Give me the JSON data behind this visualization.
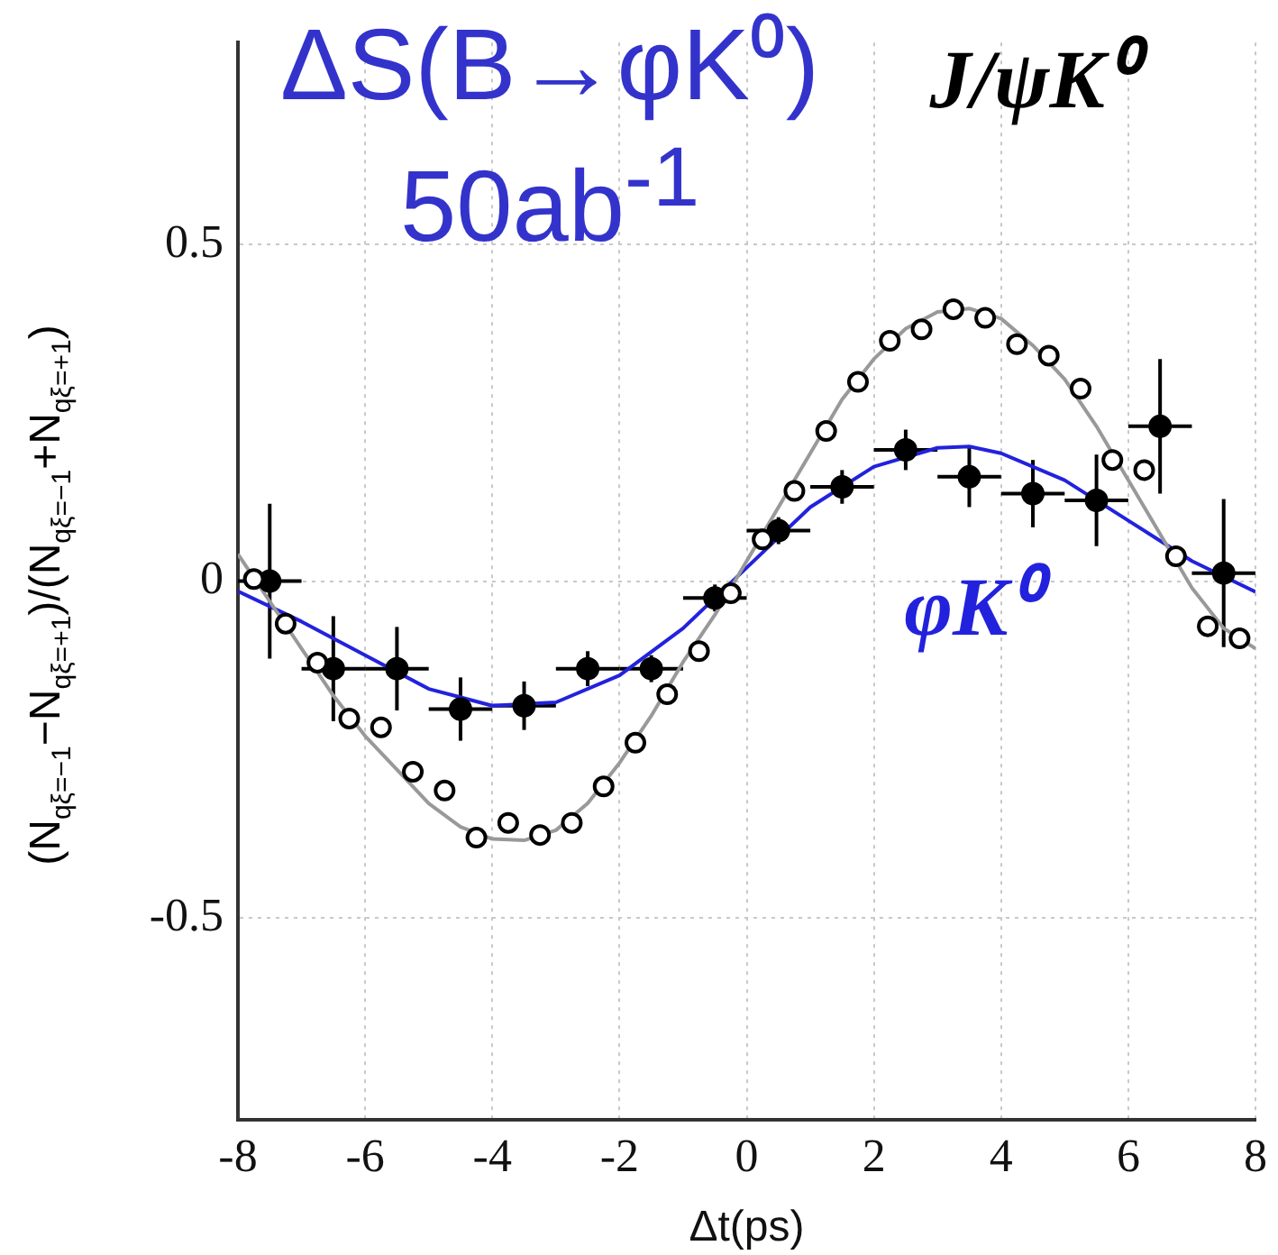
{
  "chart_data": {
    "type": "scatter",
    "title": "ΔS(B→φK⁰)",
    "subtitle": "50ab$^{-1}$",
    "xlabel": "Δt(ps)",
    "ylabel": "(N$_{qξ=−1}$−N$_{qξ=+1}$)/(N$_{qξ=−1}$+N$_{qξ=+1}$)",
    "xlim": [
      -8,
      8
    ],
    "xticks": [
      -8,
      -6,
      -4,
      -2,
      0,
      2,
      4,
      6,
      8
    ],
    "ylim": [
      -0.8,
      0.8
    ],
    "yticks": [
      -0.5,
      0,
      0.5
    ],
    "grid": true,
    "legend": false,
    "marker": "circle",
    "series": [
      {
        "type": "line",
        "color": "#999999",
        "marker": "none",
        "x": [
          -8,
          -7.5,
          -7,
          -6.5,
          -6,
          -5.5,
          -5,
          -4.5,
          -4,
          -3.5,
          -3,
          -2.5,
          -2,
          -1.5,
          -1,
          -0.5,
          0,
          0.5,
          1,
          1.5,
          2,
          2.5,
          3,
          3.5,
          4,
          4.5,
          5,
          5.5,
          6,
          6.5,
          7,
          7.5,
          8
        ],
        "values": [
          0.04,
          -0.03,
          -0.1,
          -0.17,
          -0.23,
          -0.28,
          -0.33,
          -0.365,
          -0.383,
          -0.385,
          -0.37,
          -0.33,
          -0.27,
          -0.2,
          -0.12,
          -0.05,
          0.03,
          0.11,
          0.19,
          0.27,
          0.33,
          0.375,
          0.4,
          0.405,
          0.39,
          0.35,
          0.3,
          0.23,
          0.15,
          0.07,
          -0.01,
          -0.07,
          -0.1
        ]
      },
      {
        "type": "line",
        "name": "φK⁰",
        "color": "#2222dd",
        "marker": "none",
        "x": [
          -8,
          -7,
          -6,
          -5,
          -4,
          -3,
          -2,
          -1,
          0,
          1,
          2,
          3,
          3.5,
          4,
          5,
          6,
          7,
          8
        ],
        "values": [
          -0.015,
          -0.06,
          -0.11,
          -0.16,
          -0.185,
          -0.18,
          -0.14,
          -0.07,
          0.02,
          0.11,
          0.17,
          0.198,
          0.2,
          0.19,
          0.15,
          0.09,
          0.03,
          -0.016
        ]
      },
      {
        "name": "J/ψK⁰",
        "color": "#000000",
        "x": [
          -7.75,
          -7.25,
          -6.75,
          -6.25,
          -5.75,
          -5.25,
          -4.75,
          -4.25,
          -3.75,
          -3.25,
          -2.75,
          -2.25,
          -1.75,
          -1.25,
          -0.75,
          -0.25,
          0.25,
          0.75,
          1.25,
          1.75,
          2.25,
          2.75,
          3.25,
          3.75,
          4.25,
          4.75,
          5.25,
          5.75,
          6.25,
          6.75,
          7.25,
          7.75
        ],
        "values": [
          0.003,
          -0.063,
          -0.121,
          -0.204,
          -0.217,
          -0.283,
          -0.311,
          -0.381,
          -0.359,
          -0.377,
          -0.359,
          -0.305,
          -0.24,
          -0.168,
          -0.104,
          -0.018,
          0.062,
          0.134,
          0.223,
          0.296,
          0.357,
          0.374,
          0.404,
          0.391,
          0.352,
          0.335,
          0.286,
          0.18,
          0.165,
          0.037,
          -0.067,
          -0.085
        ]
      },
      {
        "color": "#000000",
        "x": [
          -7.5,
          -6.5,
          -5.5,
          -4.5,
          -3.5,
          -2.5,
          -1.5,
          -0.5,
          0.5,
          1.5,
          2.5,
          3.5,
          4.5,
          5.5,
          6.5,
          7.5
        ],
        "values": [
          0,
          -0.13,
          -0.13,
          -0.19,
          -0.185,
          -0.13,
          -0.13,
          -0.025,
          0.075,
          0.14,
          0.195,
          0.155,
          0.13,
          0.12,
          0.23,
          0.012
        ],
        "errors": [
          0.115,
          0.078,
          0.062,
          0.047,
          0.036,
          0.026,
          0.02,
          0.02,
          0.02,
          0.025,
          0.03,
          0.045,
          0.05,
          0.068,
          0.1,
          0.11
        ],
        "xerrors": [
          0.5,
          0.5,
          0.5,
          0.5,
          0.5,
          0.5,
          0.5,
          0.5,
          0.5,
          0.5,
          0.5,
          0.5,
          0.5,
          0.5,
          0.5,
          0.5
        ]
      }
    ]
  }
}
